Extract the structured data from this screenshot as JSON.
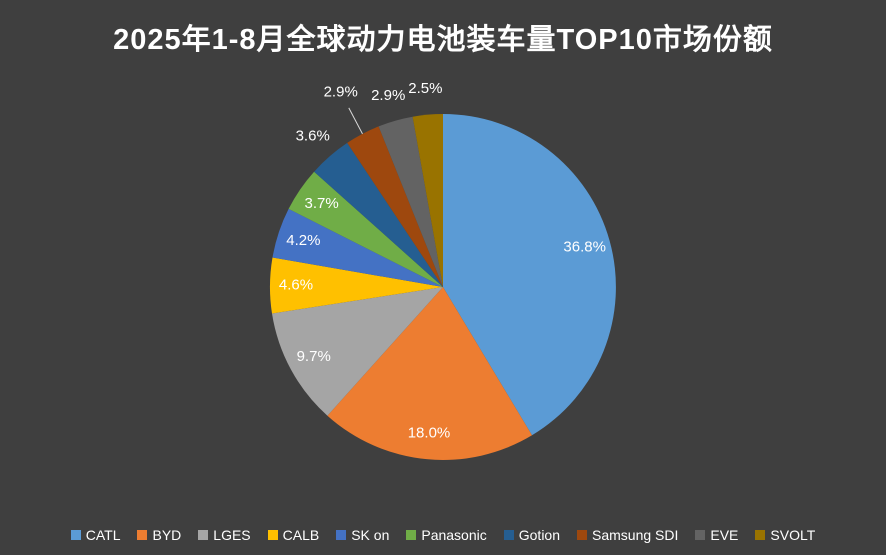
{
  "page": {
    "background_color": "#3F3F3F",
    "text_color": "#FFFFFF"
  },
  "chart_data": {
    "type": "pie",
    "title": "2025年1-8月全球动力电池装车量TOP10市场份额",
    "categories": [
      "CATL",
      "BYD",
      "LGES",
      "CALB",
      "SK on",
      "Panasonic",
      "Gotion",
      "Samsung SDI",
      "EVE",
      "SVOLT"
    ],
    "values": [
      36.8,
      18.0,
      9.7,
      4.6,
      4.2,
      3.7,
      3.6,
      2.9,
      2.9,
      2.5
    ],
    "labels": [
      "36.8%",
      "18.0%",
      "9.7%",
      "4.6%",
      "4.2%",
      "3.7%",
      "3.6%",
      "2.9%",
      "2.9%",
      "2.5%"
    ],
    "colors": [
      "#5B9BD5",
      "#ED7D31",
      "#A5A5A5",
      "#FFC000",
      "#4472C4",
      "#70AD47",
      "#255E91",
      "#9E480E",
      "#636363",
      "#997300"
    ],
    "label_placement": [
      "inside",
      "inside",
      "inside",
      "inside",
      "inside",
      "inside",
      "outside",
      "outside-leader",
      "outside",
      "outside"
    ],
    "label_color": "#FFFFFF",
    "leader_line_color": "#D9D9D9",
    "unit": "%",
    "start_angle_deg": 0,
    "direction": "clockwise",
    "legend_position": "bottom"
  }
}
